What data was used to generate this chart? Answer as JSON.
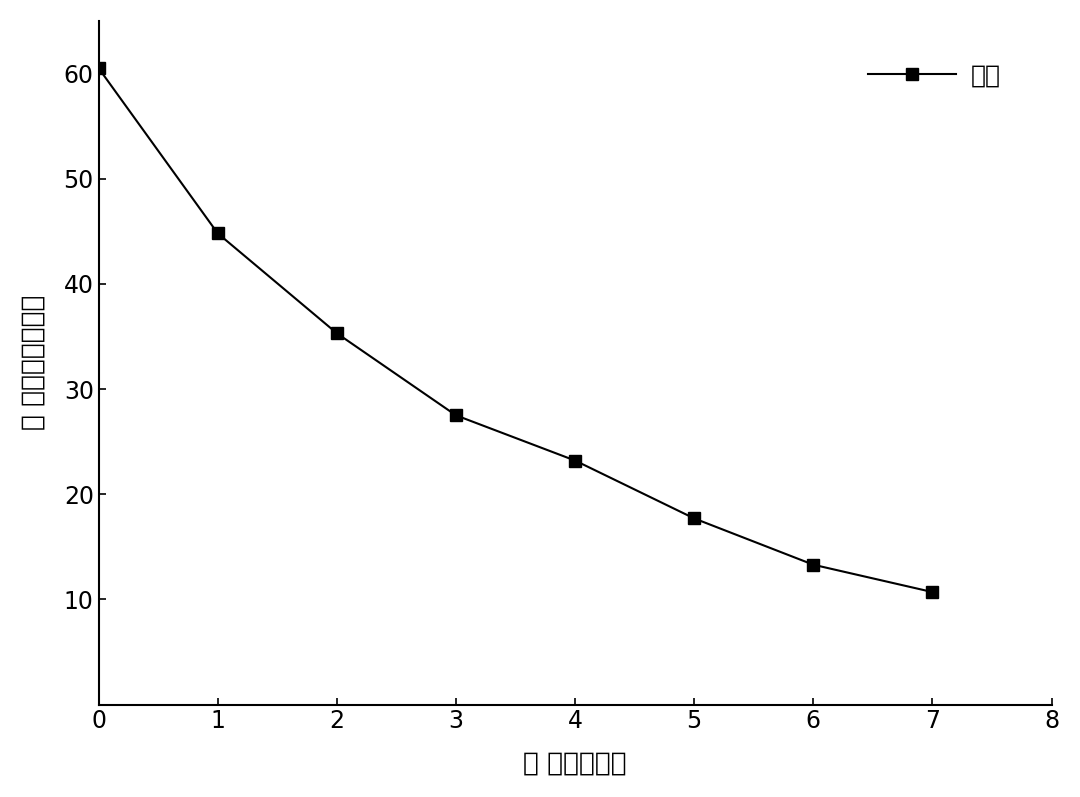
{
  "x": [
    0,
    1,
    2,
    3,
    4,
    5,
    6,
    7
  ],
  "y": [
    60.5,
    44.8,
    35.3,
    27.5,
    23.2,
    17.7,
    13.3,
    10.7
  ],
  "xlim": [
    0,
    8
  ],
  "ylim": [
    0,
    65
  ],
  "xticks": [
    0,
    1,
    2,
    3,
    4,
    5,
    6,
    7,
    8
  ],
  "yticks": [
    10,
    20,
    30,
    40,
    50,
    60
  ],
  "xlabel": "时 间（小时）",
  "ylabel": "浓 度（毫克每升）",
  "legend_label": "硭氮",
  "line_color": "#000000",
  "marker": "s",
  "marker_size": 8,
  "line_width": 1.5,
  "background_color": "#ffffff",
  "tick_fontsize": 17,
  "label_fontsize": 19,
  "legend_fontsize": 18
}
